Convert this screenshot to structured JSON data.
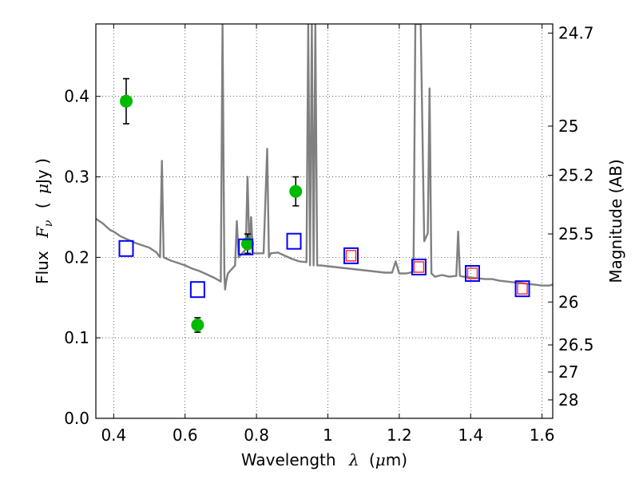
{
  "chart_data": {
    "type": "scatter",
    "title": "",
    "xlabel": "Wavelength",
    "xlabel_math": "λ",
    "xlabel_unit_open": "(",
    "xlabel_unit_mu": "μ",
    "xlabel_unit_rest": "m)",
    "ylabel": "Flux",
    "ylabel_math": "F",
    "ylabel_math_sub": "ν",
    "ylabel_unit_open": "(",
    "ylabel_unit_mu": "μ",
    "ylabel_unit_rest": "Jy )",
    "y2label": "Magnitude (AB)",
    "xlim": [
      0.35,
      1.63
    ],
    "ylim": [
      0.0,
      0.49
    ],
    "grid": true,
    "x_ticks": [
      0.4,
      0.6,
      0.8,
      1.0,
      1.2,
      1.4,
      1.6
    ],
    "x_tick_labels": [
      "0.4",
      "0.6",
      "0.8",
      "1",
      "1.2",
      "1.4",
      "1.6"
    ],
    "y_ticks": [
      0.0,
      0.1,
      0.2,
      0.3,
      0.4
    ],
    "y_tick_labels": [
      "0.0",
      "0.1",
      "0.2",
      "0.3",
      "0.4"
    ],
    "y2_ticks": [
      24.7,
      25,
      25.2,
      25.5,
      26,
      26.5,
      27,
      28
    ],
    "y2_tick_labels": [
      "24.7",
      "25",
      "25.2",
      "25.5",
      "26",
      "26.5",
      "27",
      "28"
    ],
    "series": [
      {
        "kind": "line",
        "color": "#808080",
        "x": [
          0.35,
          0.36,
          0.37,
          0.38,
          0.39,
          0.4,
          0.42,
          0.44,
          0.46,
          0.48,
          0.5,
          0.52,
          0.53,
          0.535,
          0.54,
          0.56,
          0.58,
          0.6,
          0.62,
          0.64,
          0.66,
          0.68,
          0.7,
          0.705,
          0.71,
          0.712,
          0.715,
          0.72,
          0.74,
          0.745,
          0.75,
          0.76,
          0.77,
          0.775,
          0.78,
          0.785,
          0.79,
          0.8,
          0.82,
          0.83,
          0.835,
          0.84,
          0.86,
          0.88,
          0.9,
          0.92,
          0.94,
          0.945,
          0.95,
          0.955,
          0.96,
          0.965,
          0.97,
          0.98,
          1.0,
          1.02,
          1.04,
          1.06,
          1.08,
          1.1,
          1.12,
          1.14,
          1.16,
          1.18,
          1.19,
          1.2,
          1.22,
          1.24,
          1.245,
          1.25,
          1.26,
          1.27,
          1.28,
          1.285,
          1.29,
          1.3,
          1.32,
          1.34,
          1.36,
          1.365,
          1.37,
          1.38,
          1.4,
          1.42,
          1.44,
          1.46,
          1.48,
          1.5,
          1.52,
          1.54,
          1.56,
          1.58,
          1.6,
          1.62,
          1.63
        ],
        "y": [
          0.248,
          0.245,
          0.242,
          0.238,
          0.234,
          0.232,
          0.226,
          0.222,
          0.218,
          0.215,
          0.212,
          0.206,
          0.2,
          0.32,
          0.2,
          0.196,
          0.193,
          0.19,
          0.186,
          0.183,
          0.179,
          0.175,
          0.17,
          0.49,
          0.18,
          0.16,
          0.17,
          0.18,
          0.19,
          0.245,
          0.2,
          0.205,
          0.21,
          0.3,
          0.21,
          0.25,
          0.205,
          0.205,
          0.205,
          0.335,
          0.2,
          0.205,
          0.206,
          0.202,
          0.198,
          0.195,
          0.194,
          0.49,
          0.19,
          0.49,
          0.19,
          0.49,
          0.19,
          0.19,
          0.189,
          0.188,
          0.187,
          0.186,
          0.185,
          0.184,
          0.183,
          0.182,
          0.181,
          0.181,
          0.195,
          0.18,
          0.18,
          0.182,
          0.49,
          0.49,
          0.49,
          0.22,
          0.23,
          0.41,
          0.18,
          0.176,
          0.178,
          0.176,
          0.177,
          0.232,
          0.177,
          0.176,
          0.175,
          0.174,
          0.173,
          0.173,
          0.171,
          0.17,
          0.169,
          0.168,
          0.167,
          0.166,
          0.165,
          0.165,
          0.166
        ]
      },
      {
        "kind": "points-with-errors",
        "color": "#00bb00",
        "x": [
          0.435,
          0.635,
          0.775,
          0.91
        ],
        "y": [
          0.394,
          0.116,
          0.217,
          0.282
        ],
        "err": [
          0.028,
          0.009,
          0.012,
          0.018
        ]
      },
      {
        "kind": "open-squares",
        "color": "#0000ff",
        "x": [
          0.435,
          0.635,
          0.77,
          0.905,
          1.065,
          1.255,
          1.405,
          1.545
        ],
        "y": [
          0.211,
          0.16,
          0.213,
          0.22,
          0.202,
          0.188,
          0.18,
          0.161
        ]
      },
      {
        "kind": "open-squares-small",
        "color": "#ff3333",
        "x": [
          1.065,
          1.255,
          1.405,
          1.545
        ],
        "y": [
          0.202,
          0.188,
          0.18,
          0.161
        ]
      }
    ]
  }
}
